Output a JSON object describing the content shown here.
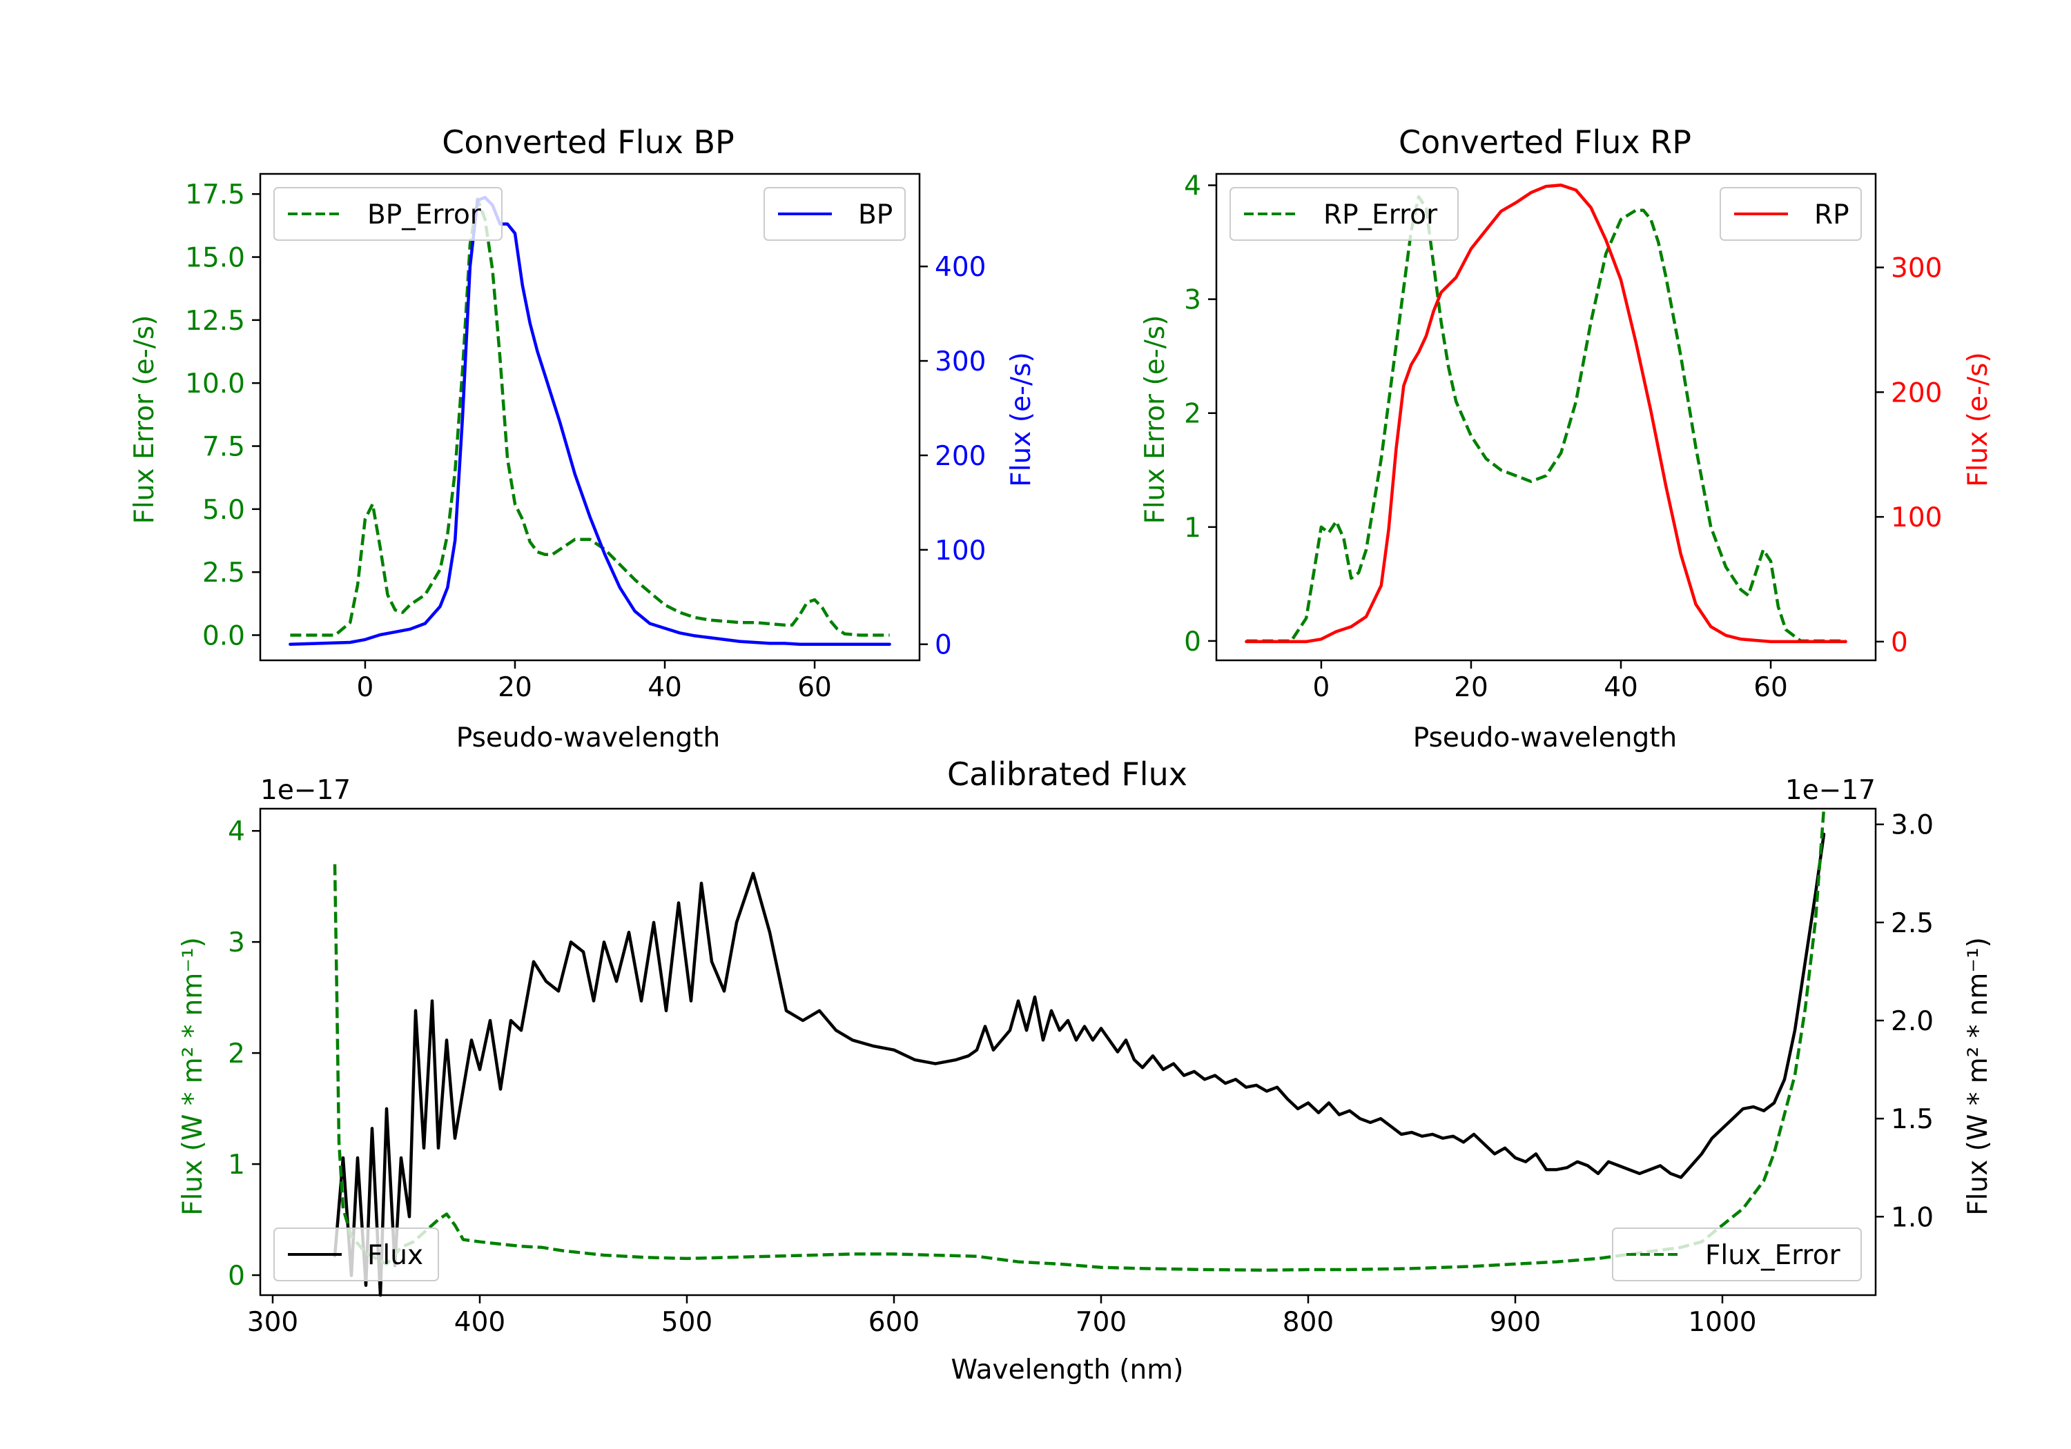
{
  "colors": {
    "error": "#008000",
    "bp": "#0000ff",
    "rp": "#ff0000",
    "flux": "#000000",
    "axis": "#000000"
  },
  "chart_data": [
    {
      "id": "bp",
      "type": "line",
      "title": "Converted Flux BP",
      "xlabel": "Pseudo-wavelength",
      "ylabel_left": "Flux Error (e-/s)",
      "ylabel_right": "Flux (e-/s)",
      "xlim": [
        -14,
        74
      ],
      "ylim_left": [
        -1.0,
        18.3
      ],
      "ylim_right": [
        -17,
        498
      ],
      "xticks": [
        0,
        20,
        40,
        60
      ],
      "yticks_left": [
        0.0,
        2.5,
        5.0,
        7.5,
        10.0,
        12.5,
        15.0,
        17.5
      ],
      "yticks_left_labels": [
        "0.0",
        "2.5",
        "5.0",
        "7.5",
        "10.0",
        "12.5",
        "15.0",
        "17.5"
      ],
      "yticks_right": [
        0,
        100,
        200,
        300,
        400
      ],
      "legend_left": "BP_Error",
      "legend_right": "BP",
      "series": [
        {
          "name": "BP_Error",
          "axis": "left",
          "style": "dashed",
          "color": "#008000",
          "x": [
            -10,
            -4,
            -2,
            -1,
            0,
            1,
            2,
            3,
            4,
            5,
            6,
            8,
            10,
            11,
            12,
            13,
            14,
            15,
            16,
            17,
            18,
            19,
            20,
            21,
            22,
            23,
            24,
            25,
            26,
            28,
            30,
            32,
            34,
            36,
            38,
            40,
            42,
            44,
            46,
            48,
            50,
            52,
            54,
            56,
            57,
            58,
            59,
            60,
            61,
            62,
            63,
            64,
            66,
            70
          ],
          "values": [
            0,
            0,
            0.5,
            2.0,
            4.6,
            5.2,
            3.5,
            1.6,
            1.0,
            0.9,
            1.2,
            1.6,
            2.6,
            4.0,
            6.5,
            10.5,
            15.5,
            17.3,
            16.5,
            14.5,
            11.0,
            7.0,
            5.2,
            4.6,
            3.7,
            3.3,
            3.2,
            3.2,
            3.4,
            3.8,
            3.8,
            3.4,
            2.8,
            2.2,
            1.7,
            1.2,
            0.9,
            0.7,
            0.6,
            0.55,
            0.5,
            0.5,
            0.45,
            0.4,
            0.4,
            0.8,
            1.3,
            1.4,
            1.1,
            0.6,
            0.25,
            0.05,
            0,
            0
          ]
        },
        {
          "name": "BP",
          "axis": "right",
          "style": "solid",
          "color": "#0000ff",
          "x": [
            -10,
            -2,
            0,
            2,
            4,
            6,
            8,
            10,
            11,
            12,
            13,
            14,
            15,
            16,
            17,
            18,
            19,
            20,
            21,
            22,
            23,
            24,
            25,
            26,
            28,
            30,
            32,
            34,
            36,
            38,
            40,
            42,
            44,
            46,
            48,
            50,
            52,
            54,
            56,
            58,
            60,
            62,
            64,
            70
          ],
          "values": [
            0,
            2,
            5,
            10,
            13,
            16,
            22,
            40,
            60,
            110,
            240,
            400,
            470,
            473,
            465,
            445,
            445,
            435,
            380,
            340,
            310,
            285,
            260,
            235,
            180,
            135,
            95,
            60,
            35,
            22,
            17,
            12,
            9,
            7,
            5,
            3,
            2,
            1,
            1,
            0,
            0,
            0,
            0,
            0
          ]
        }
      ]
    },
    {
      "id": "rp",
      "type": "line",
      "title": "Converted Flux RP",
      "xlabel": "Pseudo-wavelength",
      "ylabel_left": "Flux Error (e-/s)",
      "ylabel_right": "Flux (e-/s)",
      "xlim": [
        -14,
        74
      ],
      "ylim_left": [
        -0.17,
        4.1
      ],
      "ylim_right": [
        -15,
        375
      ],
      "xticks": [
        0,
        20,
        40,
        60
      ],
      "yticks_left": [
        0,
        1,
        2,
        3,
        4
      ],
      "yticks_left_labels": [
        "0",
        "1",
        "2",
        "3",
        "4"
      ],
      "yticks_right": [
        0,
        100,
        200,
        300
      ],
      "legend_left": "RP_Error",
      "legend_right": "RP",
      "series": [
        {
          "name": "RP_Error",
          "axis": "left",
          "style": "dashed",
          "color": "#008000",
          "x": [
            -10,
            -4,
            -2,
            -1,
            0,
            1,
            2,
            3,
            4,
            5,
            6,
            8,
            10,
            12,
            13,
            14,
            15,
            16,
            17,
            18,
            20,
            22,
            24,
            26,
            28,
            30,
            32,
            34,
            36,
            38,
            40,
            42,
            43,
            44,
            45,
            46,
            48,
            50,
            52,
            54,
            56,
            57,
            58,
            59,
            60,
            61,
            62,
            64,
            70
          ],
          "values": [
            0,
            0,
            0.2,
            0.6,
            1.0,
            0.95,
            1.05,
            0.9,
            0.55,
            0.6,
            0.8,
            1.6,
            2.6,
            3.6,
            3.9,
            3.8,
            3.3,
            2.8,
            2.4,
            2.1,
            1.8,
            1.6,
            1.5,
            1.45,
            1.4,
            1.45,
            1.65,
            2.1,
            2.8,
            3.4,
            3.7,
            3.78,
            3.78,
            3.7,
            3.5,
            3.2,
            2.5,
            1.7,
            1.0,
            0.65,
            0.45,
            0.4,
            0.6,
            0.8,
            0.7,
            0.3,
            0.1,
            0,
            0
          ]
        },
        {
          "name": "RP",
          "axis": "right",
          "style": "solid",
          "color": "#ff0000",
          "x": [
            -10,
            -2,
            0,
            2,
            4,
            6,
            8,
            9,
            10,
            11,
            12,
            13,
            14,
            15,
            16,
            18,
            20,
            22,
            24,
            26,
            28,
            30,
            32,
            34,
            36,
            38,
            40,
            42,
            44,
            46,
            48,
            50,
            52,
            54,
            56,
            58,
            60,
            62,
            64,
            70
          ],
          "values": [
            0,
            0,
            2,
            8,
            12,
            20,
            45,
            90,
            155,
            205,
            222,
            232,
            245,
            265,
            280,
            292,
            315,
            330,
            345,
            352,
            360,
            365,
            366,
            362,
            348,
            322,
            290,
            240,
            185,
            125,
            70,
            30,
            12,
            5,
            2,
            1,
            0,
            0,
            0,
            0
          ]
        }
      ]
    },
    {
      "id": "calibrated",
      "type": "line",
      "title": "Calibrated Flux",
      "xlabel": "Wavelength (nm)",
      "ylabel_left": "Flux (W * m² * nm⁻¹)",
      "ylabel_right": "Flux (W * m² * nm⁻¹)",
      "offset_left": "1e−17",
      "offset_right": "1e−17",
      "xlim": [
        294,
        1074
      ],
      "ylim_left": [
        -0.18,
        4.2
      ],
      "ylim_right": [
        0.6,
        3.08
      ],
      "xticks": [
        300,
        400,
        500,
        600,
        700,
        800,
        900,
        1000
      ],
      "yticks_left": [
        0,
        1,
        2,
        3,
        4
      ],
      "yticks_left_labels": [
        "0",
        "1",
        "2",
        "3",
        "4"
      ],
      "yticks_right": [
        1.0,
        1.5,
        2.0,
        2.5,
        3.0
      ],
      "yticks_right_labels": [
        "1.0",
        "1.5",
        "2.0",
        "2.5",
        "3.0"
      ],
      "legend_left": "Flux",
      "legend_right": "Flux_Error",
      "series": [
        {
          "name": "Flux",
          "axis": "right",
          "style": "solid",
          "color": "#000000",
          "x": [
            330,
            334,
            338,
            341,
            345,
            348,
            352,
            355,
            359,
            362,
            366,
            369,
            373,
            377,
            380,
            384,
            388,
            392,
            396,
            400,
            405,
            410,
            415,
            420,
            426,
            432,
            438,
            444,
            450,
            455,
            460,
            466,
            472,
            478,
            484,
            490,
            496,
            502,
            507,
            512,
            518,
            524,
            532,
            540,
            548,
            556,
            564,
            572,
            580,
            590,
            600,
            610,
            620,
            630,
            636,
            640,
            644,
            648,
            652,
            656,
            660,
            664,
            668,
            672,
            676,
            680,
            684,
            688,
            692,
            696,
            700,
            704,
            708,
            712,
            716,
            720,
            725,
            730,
            735,
            740,
            745,
            750,
            755,
            760,
            765,
            770,
            775,
            780,
            785,
            790,
            795,
            800,
            805,
            810,
            815,
            820,
            825,
            830,
            835,
            840,
            845,
            850,
            855,
            860,
            865,
            870,
            875,
            880,
            885,
            890,
            895,
            900,
            905,
            910,
            915,
            920,
            925,
            930,
            935,
            940,
            945,
            950,
            955,
            960,
            965,
            970,
            975,
            980,
            985,
            990,
            995,
            1000,
            1005,
            1010,
            1015,
            1020,
            1025,
            1030,
            1035,
            1040,
            1045,
            1049
          ],
          "values": [
            0.8,
            1.3,
            0.7,
            1.3,
            0.65,
            1.45,
            0.6,
            1.55,
            0.75,
            1.3,
            1.0,
            2.05,
            1.35,
            2.1,
            1.35,
            1.9,
            1.4,
            1.65,
            1.9,
            1.75,
            2.0,
            1.65,
            2.0,
            1.95,
            2.3,
            2.2,
            2.15,
            2.4,
            2.35,
            2.1,
            2.4,
            2.2,
            2.45,
            2.1,
            2.5,
            2.05,
            2.6,
            2.1,
            2.7,
            2.3,
            2.15,
            2.5,
            2.75,
            2.45,
            2.05,
            2.0,
            2.05,
            1.95,
            1.9,
            1.87,
            1.85,
            1.8,
            1.78,
            1.8,
            1.82,
            1.85,
            1.97,
            1.85,
            1.9,
            1.95,
            2.1,
            1.95,
            2.12,
            1.9,
            2.05,
            1.95,
            2.0,
            1.9,
            1.97,
            1.9,
            1.96,
            1.9,
            1.84,
            1.9,
            1.8,
            1.76,
            1.82,
            1.75,
            1.78,
            1.72,
            1.74,
            1.7,
            1.72,
            1.68,
            1.7,
            1.66,
            1.67,
            1.64,
            1.66,
            1.6,
            1.55,
            1.58,
            1.53,
            1.58,
            1.52,
            1.54,
            1.5,
            1.48,
            1.5,
            1.46,
            1.42,
            1.43,
            1.41,
            1.42,
            1.4,
            1.41,
            1.38,
            1.42,
            1.37,
            1.32,
            1.35,
            1.3,
            1.28,
            1.32,
            1.24,
            1.24,
            1.25,
            1.28,
            1.26,
            1.22,
            1.28,
            1.26,
            1.24,
            1.22,
            1.24,
            1.26,
            1.22,
            1.2,
            1.26,
            1.32,
            1.4,
            1.45,
            1.5,
            1.55,
            1.56,
            1.54,
            1.58,
            1.7,
            1.95,
            2.3,
            2.65,
            2.95
          ]
        },
        {
          "name": "Flux_Error",
          "axis": "left",
          "style": "dashed",
          "color": "#008000",
          "x": [
            330,
            331,
            332,
            334,
            338,
            345,
            355,
            362,
            368,
            374,
            380,
            384,
            388,
            392,
            400,
            410,
            420,
            430,
            440,
            460,
            480,
            500,
            520,
            540,
            560,
            580,
            600,
            620,
            640,
            660,
            680,
            700,
            720,
            750,
            780,
            800,
            820,
            850,
            880,
            900,
            920,
            940,
            960,
            980,
            990,
            1000,
            1010,
            1020,
            1025,
            1030,
            1035,
            1040,
            1045,
            1049
          ],
          "values": [
            3.7,
            2.5,
            1.2,
            0.6,
            0.35,
            0.2,
            0.1,
            0.25,
            0.3,
            0.4,
            0.5,
            0.55,
            0.45,
            0.32,
            0.3,
            0.28,
            0.26,
            0.25,
            0.22,
            0.18,
            0.16,
            0.15,
            0.16,
            0.17,
            0.18,
            0.19,
            0.19,
            0.18,
            0.17,
            0.12,
            0.1,
            0.07,
            0.06,
            0.05,
            0.045,
            0.05,
            0.05,
            0.06,
            0.08,
            0.1,
            0.12,
            0.15,
            0.2,
            0.25,
            0.3,
            0.45,
            0.6,
            0.85,
            1.1,
            1.45,
            1.8,
            2.4,
            3.2,
            4.2
          ]
        }
      ]
    }
  ]
}
